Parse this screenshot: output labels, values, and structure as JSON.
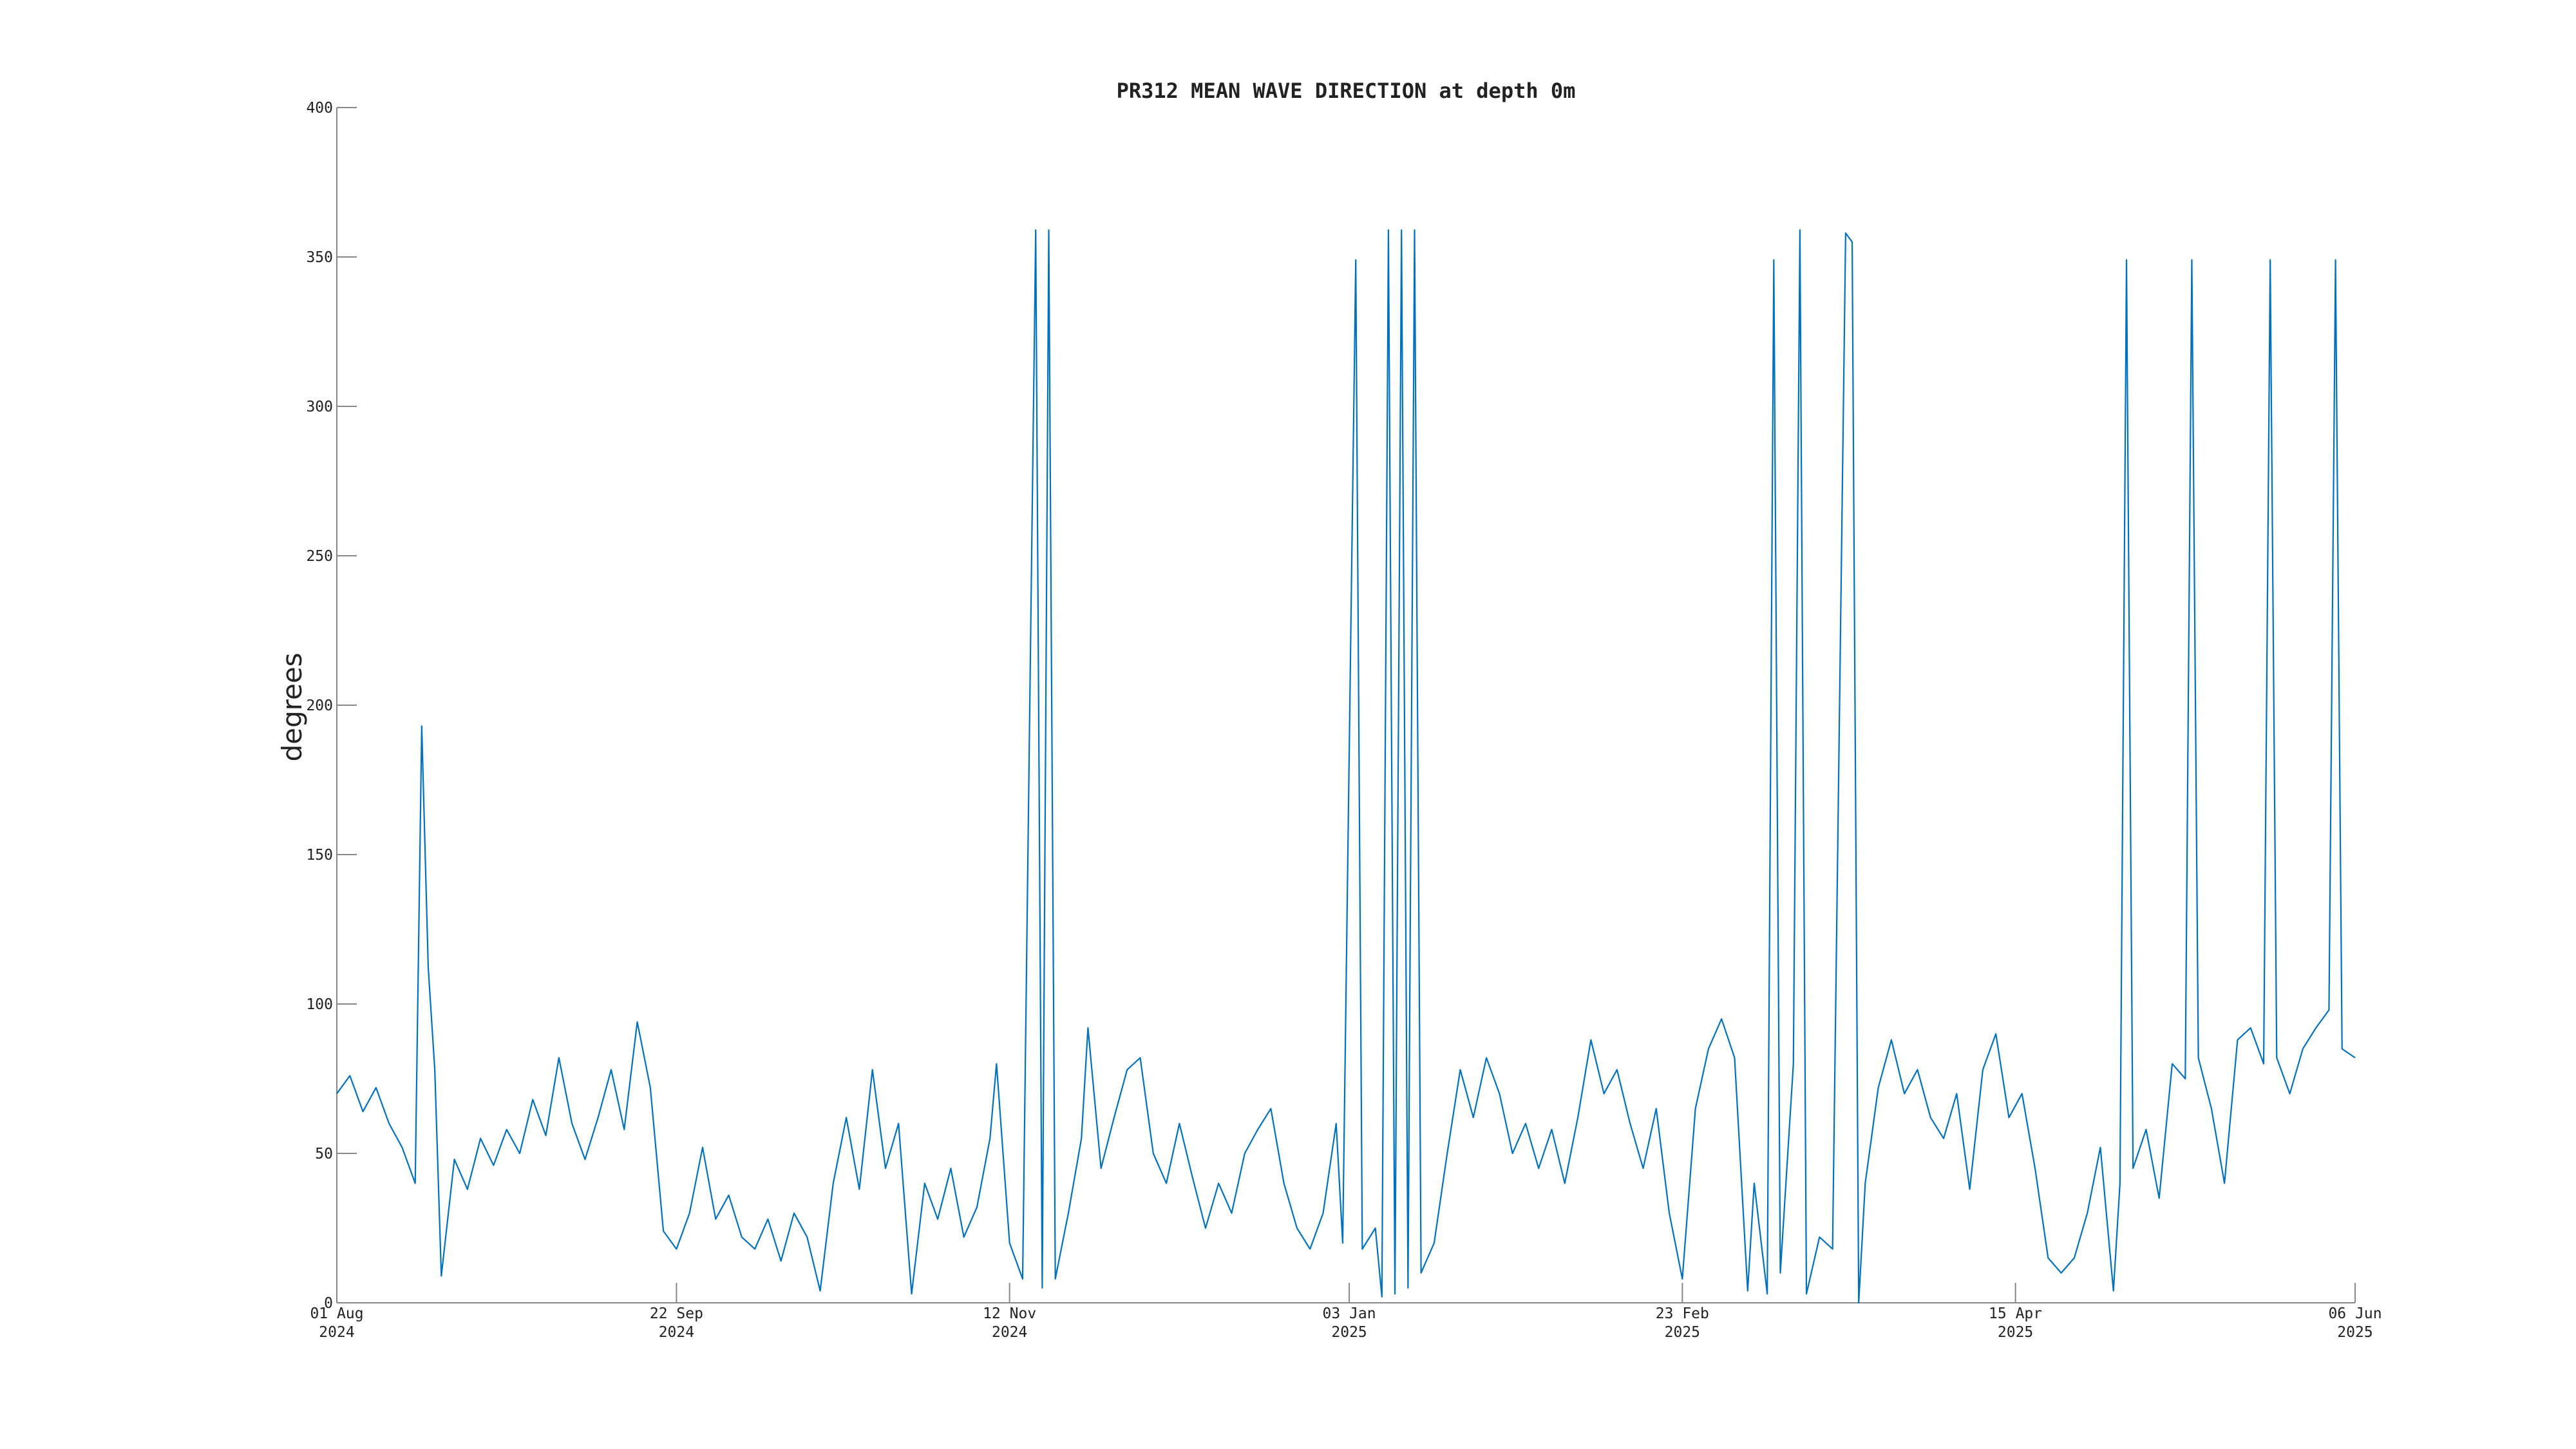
{
  "chart_data": {
    "type": "line",
    "title": "PR312 MEAN WAVE DIRECTION at depth 0m",
    "y_label": "degrees",
    "x": [
      "2024-08-01",
      "2024-08-03",
      "2024-08-05",
      "2024-08-07",
      "2024-08-09",
      "2024-08-11",
      "2024-08-13",
      "2024-08-14",
      "2024-08-15",
      "2024-08-16",
      "2024-08-17",
      "2024-08-19",
      "2024-08-21",
      "2024-08-23",
      "2024-08-25",
      "2024-08-27",
      "2024-08-29",
      "2024-08-31",
      "2024-09-02",
      "2024-09-04",
      "2024-09-06",
      "2024-09-08",
      "2024-09-10",
      "2024-09-12",
      "2024-09-14",
      "2024-09-16",
      "2024-09-18",
      "2024-09-20",
      "2024-09-22",
      "2024-09-24",
      "2024-09-26",
      "2024-09-28",
      "2024-09-30",
      "2024-10-02",
      "2024-10-04",
      "2024-10-06",
      "2024-10-08",
      "2024-10-10",
      "2024-10-12",
      "2024-10-14",
      "2024-10-16",
      "2024-10-18",
      "2024-10-20",
      "2024-10-22",
      "2024-10-24",
      "2024-10-26",
      "2024-10-28",
      "2024-10-30",
      "2024-11-01",
      "2024-11-03",
      "2024-11-05",
      "2024-11-07",
      "2024-11-09",
      "2024-11-10",
      "2024-11-12",
      "2024-11-14",
      "2024-11-16",
      "2024-11-17",
      "2024-11-18",
      "2024-11-19",
      "2024-11-21",
      "2024-11-23",
      "2024-11-24",
      "2024-11-26",
      "2024-11-28",
      "2024-11-30",
      "2024-12-02",
      "2024-12-04",
      "2024-12-06",
      "2024-12-08",
      "2024-12-10",
      "2024-12-12",
      "2024-12-14",
      "2024-12-16",
      "2024-12-18",
      "2024-12-20",
      "2024-12-22",
      "2024-12-24",
      "2024-12-26",
      "2024-12-28",
      "2024-12-30",
      "2025-01-01",
      "2025-01-02",
      "2025-01-04",
      "2025-01-05",
      "2025-01-07",
      "2025-01-08",
      "2025-01-09",
      "2025-01-10",
      "2025-01-11",
      "2025-01-12",
      "2025-01-13",
      "2025-01-14",
      "2025-01-16",
      "2025-01-18",
      "2025-01-20",
      "2025-01-22",
      "2025-01-24",
      "2025-01-26",
      "2025-01-28",
      "2025-01-30",
      "2025-02-01",
      "2025-02-03",
      "2025-02-05",
      "2025-02-07",
      "2025-02-09",
      "2025-02-11",
      "2025-02-13",
      "2025-02-15",
      "2025-02-17",
      "2025-02-19",
      "2025-02-21",
      "2025-02-23",
      "2025-02-25",
      "2025-02-27",
      "2025-03-01",
      "2025-03-03",
      "2025-03-05",
      "2025-03-06",
      "2025-03-08",
      "2025-03-09",
      "2025-03-10",
      "2025-03-12",
      "2025-03-13",
      "2025-03-14",
      "2025-03-16",
      "2025-03-18",
      "2025-03-20",
      "2025-03-21",
      "2025-03-22",
      "2025-03-23",
      "2025-03-25",
      "2025-03-27",
      "2025-03-29",
      "2025-03-31",
      "2025-04-02",
      "2025-04-04",
      "2025-04-06",
      "2025-04-08",
      "2025-04-10",
      "2025-04-12",
      "2025-04-14",
      "2025-04-16",
      "2025-04-18",
      "2025-04-20",
      "2025-04-22",
      "2025-04-24",
      "2025-04-26",
      "2025-04-28",
      "2025-04-30",
      "2025-05-01",
      "2025-05-02",
      "2025-05-03",
      "2025-05-05",
      "2025-05-07",
      "2025-05-09",
      "2025-05-11",
      "2025-05-12",
      "2025-05-13",
      "2025-05-15",
      "2025-05-17",
      "2025-05-19",
      "2025-05-21",
      "2025-05-23",
      "2025-05-24",
      "2025-05-25",
      "2025-05-27",
      "2025-05-29",
      "2025-05-31",
      "2025-06-02",
      "2025-06-03",
      "2025-06-04",
      "2025-06-06"
    ],
    "series": [
      {
        "name": "mean wave direction",
        "color": "#0072bd",
        "values": [
          70,
          76,
          64,
          72,
          60,
          52,
          40,
          193,
          112,
          78,
          9,
          48,
          38,
          55,
          46,
          58,
          50,
          68,
          56,
          82,
          60,
          48,
          62,
          78,
          58,
          94,
          72,
          24,
          18,
          30,
          52,
          28,
          36,
          22,
          18,
          28,
          14,
          30,
          22,
          4,
          40,
          62,
          38,
          78,
          45,
          60,
          3,
          40,
          28,
          45,
          22,
          32,
          55,
          80,
          20,
          8,
          359,
          5,
          359,
          8,
          30,
          55,
          92,
          45,
          62,
          78,
          82,
          50,
          40,
          60,
          42,
          25,
          40,
          30,
          50,
          58,
          65,
          40,
          25,
          18,
          30,
          60,
          20,
          349,
          18,
          25,
          2,
          359,
          3,
          359,
          5,
          359,
          10,
          20,
          50,
          78,
          62,
          82,
          70,
          50,
          60,
          45,
          58,
          40,
          62,
          88,
          70,
          78,
          60,
          45,
          65,
          30,
          8,
          65,
          85,
          95,
          82,
          4,
          40,
          3,
          349,
          10,
          80,
          359,
          3,
          22,
          18,
          358,
          355,
          0,
          40,
          72,
          88,
          70,
          78,
          62,
          55,
          70,
          38,
          78,
          90,
          62,
          70,
          45,
          15,
          10,
          15,
          30,
          52,
          4,
          40,
          349,
          45,
          58,
          35,
          80,
          75,
          349,
          82,
          65,
          40,
          88,
          92,
          80,
          349,
          82,
          70,
          85,
          92,
          98,
          349,
          85,
          82
        ]
      }
    ],
    "xlim": [
      "2024-08-01",
      "2025-06-06"
    ],
    "xticks": [
      {
        "value": "2024-08-01",
        "label": [
          "01 Aug",
          "2024"
        ]
      },
      {
        "value": "2024-09-22",
        "label": [
          "22 Sep",
          "2024"
        ]
      },
      {
        "value": "2024-11-12",
        "label": [
          "12 Nov",
          "2024"
        ]
      },
      {
        "value": "2025-01-03",
        "label": [
          "03 Jan",
          "2025"
        ]
      },
      {
        "value": "2025-02-23",
        "label": [
          "23 Feb",
          "2025"
        ]
      },
      {
        "value": "2025-04-15",
        "label": [
          "15 Apr",
          "2025"
        ]
      },
      {
        "value": "2025-06-06",
        "label": [
          "06 Jun",
          "2025"
        ]
      }
    ],
    "ylim": [
      0,
      400
    ],
    "yticks": [
      0,
      50,
      100,
      150,
      200,
      250,
      300,
      350,
      400
    ],
    "grid": false
  }
}
